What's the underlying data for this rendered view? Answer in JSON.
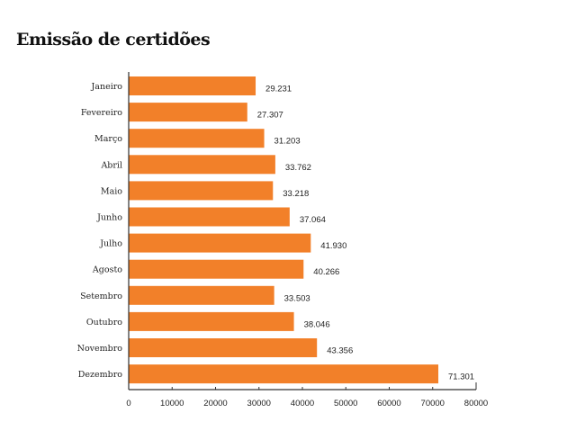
{
  "chart_data": {
    "type": "bar",
    "orientation": "horizontal",
    "title": "Emissão de certidões",
    "categories": [
      "Janeiro",
      "Fevereiro",
      "Março",
      "Abril",
      "Maio",
      "Junho",
      "Julho",
      "Agosto",
      "Setembro",
      "Outubro",
      "Novembro",
      "Dezembro"
    ],
    "values": [
      29231,
      27307,
      31203,
      33762,
      33218,
      37064,
      41930,
      40266,
      33503,
      38046,
      43356,
      71301
    ],
    "value_labels": [
      "29.231",
      "27.307",
      "31.203",
      "33.762",
      "33.218",
      "37.064",
      "41.930",
      "40.266",
      "33.503",
      "38.046",
      "43.356",
      "71.301"
    ],
    "xlim": [
      0,
      80000
    ],
    "xticks": [
      "0",
      "10000",
      "20000",
      "30000",
      "40000",
      "50000",
      "60000",
      "70000",
      "80000"
    ],
    "xlabel": "",
    "ylabel": "",
    "grid": false,
    "bar_color": "#f28029"
  }
}
